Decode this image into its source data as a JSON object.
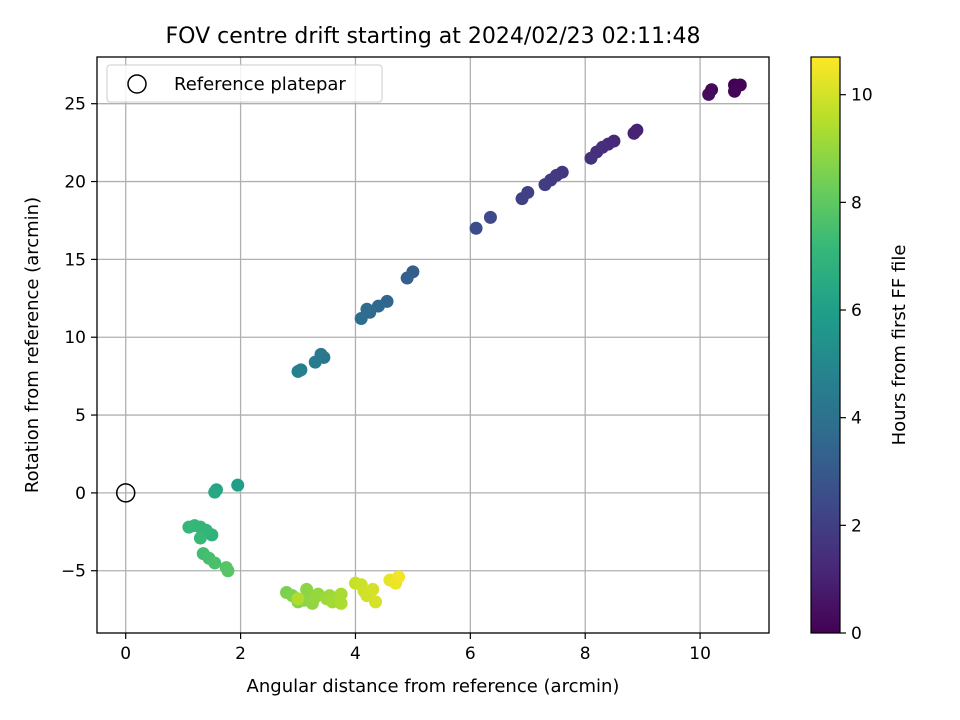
{
  "chart_data": {
    "type": "scatter",
    "title": "FOV centre drift starting at 2024/02/23 02:11:48",
    "xlabel": "Angular distance from reference (arcmin)",
    "ylabel": "Rotation from reference (arcmin)",
    "xlim": [
      -0.5,
      11.2
    ],
    "ylim": [
      -9,
      28
    ],
    "xticks": [
      0,
      2,
      4,
      6,
      8,
      10
    ],
    "yticks": [
      -5,
      0,
      5,
      10,
      15,
      20,
      25
    ],
    "grid": true,
    "legend": {
      "location": "upper-left",
      "entries": [
        {
          "label": "Reference platepar",
          "marker": "open-circle"
        }
      ]
    },
    "reference_point": {
      "x": 0,
      "y": 0
    },
    "colorbar": {
      "label": "Hours from first FF file",
      "colormap": "viridis",
      "range": [
        0,
        10.7
      ],
      "ticks": [
        0,
        2,
        4,
        6,
        8,
        10
      ]
    },
    "colormap_stops": [
      "#440154",
      "#482878",
      "#3e4989",
      "#31688e",
      "#26828e",
      "#1f9e89",
      "#35b779",
      "#6ece58",
      "#b5de2b",
      "#fde725"
    ],
    "points": [
      {
        "x": 10.6,
        "y": 26.2,
        "h": 0.0
      },
      {
        "x": 10.7,
        "y": 26.2,
        "h": 0.05
      },
      {
        "x": 10.6,
        "y": 25.8,
        "h": 0.1
      },
      {
        "x": 10.2,
        "y": 25.9,
        "h": 0.2
      },
      {
        "x": 10.15,
        "y": 25.6,
        "h": 0.3
      },
      {
        "x": 8.9,
        "y": 23.3,
        "h": 1.0
      },
      {
        "x": 8.85,
        "y": 23.1,
        "h": 1.05
      },
      {
        "x": 8.5,
        "y": 22.6,
        "h": 1.2
      },
      {
        "x": 8.4,
        "y": 22.4,
        "h": 1.3
      },
      {
        "x": 8.3,
        "y": 22.2,
        "h": 1.4
      },
      {
        "x": 8.2,
        "y": 21.9,
        "h": 1.45
      },
      {
        "x": 8.1,
        "y": 21.5,
        "h": 1.55
      },
      {
        "x": 7.6,
        "y": 20.6,
        "h": 1.75
      },
      {
        "x": 7.5,
        "y": 20.4,
        "h": 1.8
      },
      {
        "x": 7.4,
        "y": 20.1,
        "h": 1.85
      },
      {
        "x": 7.3,
        "y": 19.8,
        "h": 1.9
      },
      {
        "x": 7.0,
        "y": 19.3,
        "h": 2.05
      },
      {
        "x": 6.9,
        "y": 18.9,
        "h": 2.1
      },
      {
        "x": 6.35,
        "y": 17.7,
        "h": 2.4
      },
      {
        "x": 6.1,
        "y": 17.0,
        "h": 2.5
      },
      {
        "x": 5.0,
        "y": 14.2,
        "h": 3.2
      },
      {
        "x": 4.9,
        "y": 13.8,
        "h": 3.25
      },
      {
        "x": 4.55,
        "y": 12.3,
        "h": 3.5
      },
      {
        "x": 4.4,
        "y": 12.0,
        "h": 3.6
      },
      {
        "x": 4.25,
        "y": 11.6,
        "h": 3.7
      },
      {
        "x": 4.2,
        "y": 11.8,
        "h": 3.75
      },
      {
        "x": 4.1,
        "y": 11.2,
        "h": 3.8
      },
      {
        "x": 3.45,
        "y": 8.7,
        "h": 4.3
      },
      {
        "x": 3.4,
        "y": 8.9,
        "h": 4.35
      },
      {
        "x": 3.3,
        "y": 8.4,
        "h": 4.45
      },
      {
        "x": 3.05,
        "y": 7.9,
        "h": 4.6
      },
      {
        "x": 3.0,
        "y": 7.8,
        "h": 4.65
      },
      {
        "x": 1.95,
        "y": 0.5,
        "h": 6.0
      },
      {
        "x": 1.58,
        "y": 0.2,
        "h": 6.3
      },
      {
        "x": 1.55,
        "y": 0.05,
        "h": 6.35
      },
      {
        "x": 1.5,
        "y": -2.7,
        "h": 6.9
      },
      {
        "x": 1.4,
        "y": -2.4,
        "h": 7.0
      },
      {
        "x": 1.3,
        "y": -2.2,
        "h": 7.05
      },
      {
        "x": 1.2,
        "y": -2.1,
        "h": 7.1
      },
      {
        "x": 1.1,
        "y": -2.2,
        "h": 7.15
      },
      {
        "x": 1.3,
        "y": -2.9,
        "h": 7.2
      },
      {
        "x": 1.35,
        "y": -3.9,
        "h": 7.4
      },
      {
        "x": 1.45,
        "y": -4.2,
        "h": 7.5
      },
      {
        "x": 1.55,
        "y": -4.5,
        "h": 7.6
      },
      {
        "x": 1.75,
        "y": -4.8,
        "h": 7.8
      },
      {
        "x": 1.78,
        "y": -5.0,
        "h": 7.85
      },
      {
        "x": 2.8,
        "y": -6.4,
        "h": 8.5
      },
      {
        "x": 2.9,
        "y": -6.6,
        "h": 8.6
      },
      {
        "x": 3.0,
        "y": -7.0,
        "h": 8.7
      },
      {
        "x": 3.1,
        "y": -6.9,
        "h": 8.75
      },
      {
        "x": 3.15,
        "y": -6.2,
        "h": 8.8
      },
      {
        "x": 3.2,
        "y": -6.6,
        "h": 8.85
      },
      {
        "x": 3.25,
        "y": -7.1,
        "h": 8.9
      },
      {
        "x": 3.3,
        "y": -6.7,
        "h": 8.95
      },
      {
        "x": 3.35,
        "y": -6.5,
        "h": 9.0
      },
      {
        "x": 3.5,
        "y": -6.8,
        "h": 9.1
      },
      {
        "x": 3.55,
        "y": -6.6,
        "h": 9.15
      },
      {
        "x": 3.6,
        "y": -7.0,
        "h": 9.2
      },
      {
        "x": 3.7,
        "y": -6.9,
        "h": 9.25
      },
      {
        "x": 3.75,
        "y": -6.5,
        "h": 9.3
      },
      {
        "x": 3.75,
        "y": -7.1,
        "h": 9.35
      },
      {
        "x": 3.0,
        "y": -6.8,
        "h": 9.4
      },
      {
        "x": 4.0,
        "y": -5.8,
        "h": 9.8
      },
      {
        "x": 4.1,
        "y": -5.9,
        "h": 9.85
      },
      {
        "x": 4.15,
        "y": -6.3,
        "h": 9.9
      },
      {
        "x": 4.2,
        "y": -6.6,
        "h": 9.95
      },
      {
        "x": 4.3,
        "y": -6.2,
        "h": 10.0
      },
      {
        "x": 4.35,
        "y": -7.0,
        "h": 10.05
      },
      {
        "x": 4.6,
        "y": -5.6,
        "h": 10.3
      },
      {
        "x": 4.7,
        "y": -5.8,
        "h": 10.4
      },
      {
        "x": 4.75,
        "y": -5.4,
        "h": 10.5
      }
    ]
  }
}
